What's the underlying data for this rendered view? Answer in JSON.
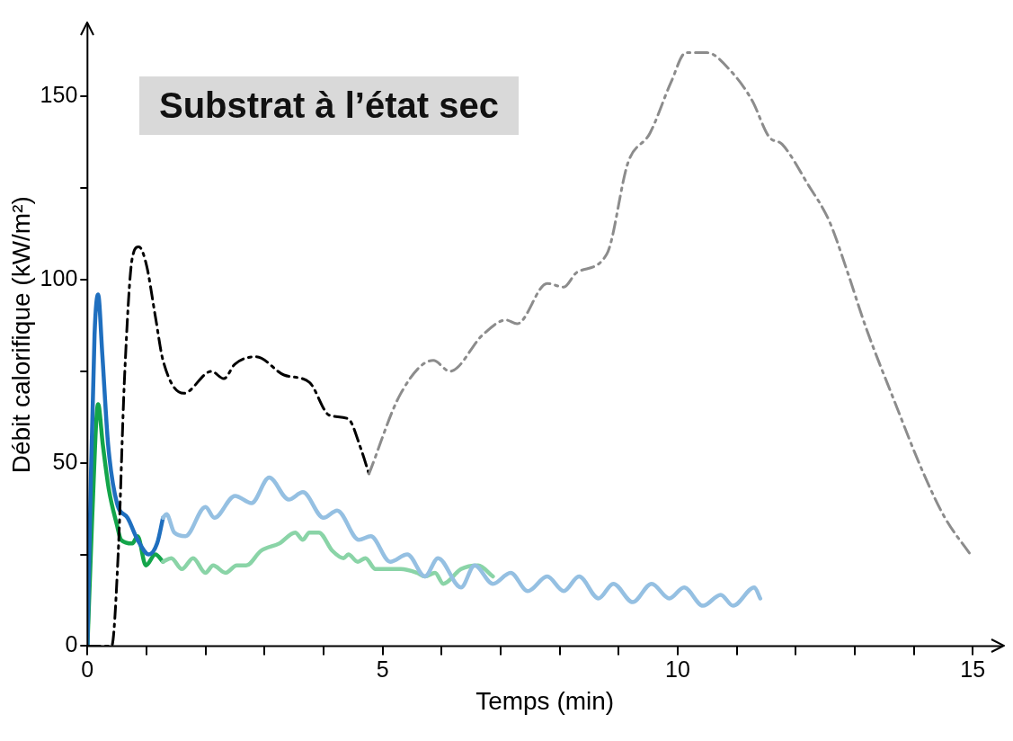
{
  "chart_data": {
    "type": "line",
    "title": "Substrat à l’état sec",
    "xlabel": "Temps (min)",
    "ylabel": "Débit calorifique (kW/m²)",
    "xlim": [
      0,
      15.5
    ],
    "ylim": [
      0,
      170
    ],
    "xticks": [
      0,
      {
        "value": 1,
        "label": null
      },
      {
        "value": 2,
        "label": null
      },
      {
        "value": 3,
        "label": null
      },
      {
        "value": 4,
        "label": null
      },
      5,
      {
        "value": 6,
        "label": null
      },
      {
        "value": 7,
        "label": null
      },
      {
        "value": 8,
        "label": null
      },
      {
        "value": 9,
        "label": null
      },
      10,
      {
        "value": 11,
        "label": null
      },
      {
        "value": 12,
        "label": null
      },
      {
        "value": 13,
        "label": null
      },
      {
        "value": 14,
        "label": null
      },
      15
    ],
    "yticks": [
      0,
      {
        "value": 25,
        "label": null
      },
      50,
      {
        "value": 75,
        "label": null
      },
      100,
      {
        "value": 125,
        "label": null
      },
      150
    ],
    "grid": false,
    "legend": false,
    "marker": "none",
    "series": [
      {
        "color": "#8c8c8c",
        "line_style": "dashed",
        "x": [
          4.77,
          5.31,
          5.86,
          6.14,
          6.7,
          7.09,
          7.28,
          7.79,
          8.07,
          8.29,
          8.8,
          9.16,
          9.53,
          9.89,
          10.14,
          10.5,
          10.9,
          11.26,
          11.55,
          11.77,
          12.21,
          12.57,
          12.86,
          13.19,
          13.67,
          14.17,
          14.53,
          14.96
        ],
        "values": [
          47,
          69,
          78,
          75,
          85,
          89,
          88,
          99,
          98,
          102,
          107,
          132,
          140,
          154,
          162,
          162,
          157,
          149,
          139,
          137,
          126,
          116,
          103,
          87,
          67,
          47,
          35,
          25
        ]
      },
      {
        "color": "#000000",
        "line_style": "dashed",
        "x": [
          0,
          0.41,
          0.52,
          0.63,
          0.76,
          0.87,
          1.0,
          1.15,
          1.28,
          1.63,
          2.1,
          2.31,
          2.5,
          2.86,
          3.33,
          3.76,
          4.1,
          4.42,
          4.63,
          4.77
        ],
        "values": [
          0,
          0,
          25,
          74,
          106,
          109,
          104,
          90,
          78,
          69,
          75,
          73,
          77,
          79,
          74,
          72,
          63,
          62,
          54,
          47
        ]
      },
      {
        "color": "#95c0e2",
        "line_style": "solid",
        "x": [
          1.28,
          1.34,
          1.47,
          1.66,
          2.0,
          2.15,
          2.5,
          2.78,
          3.08,
          3.41,
          3.65,
          4.0,
          4.23,
          4.6,
          4.8,
          5.13,
          5.42,
          5.72,
          5.94,
          6.33,
          6.56,
          6.87,
          7.17,
          7.46,
          7.79,
          8.07,
          8.33,
          8.66,
          8.91,
          9.24,
          9.56,
          9.86,
          10.11,
          10.43,
          10.73,
          10.94,
          11.3,
          11.4
        ],
        "values": [
          35,
          36,
          31,
          30,
          38,
          35,
          41,
          39,
          46,
          40,
          42,
          35,
          37,
          29,
          30,
          23,
          25,
          19,
          24,
          16,
          22,
          17,
          20,
          15,
          19,
          15,
          19,
          13,
          17,
          12,
          17,
          13,
          16,
          11,
          14,
          11,
          16,
          13
        ]
      },
      {
        "color": "#8ad4a7",
        "line_style": "solid",
        "x": [
          1.28,
          1.42,
          1.6,
          1.79,
          2.0,
          2.13,
          2.34,
          2.53,
          2.69,
          2.94,
          3.25,
          3.52,
          3.65,
          3.76,
          3.92,
          4.15,
          4.34,
          4.42,
          4.58,
          4.71,
          4.88,
          5.31,
          5.58,
          5.72,
          5.89,
          6.03,
          6.33,
          6.62,
          6.87
        ],
        "values": [
          23,
          24,
          21,
          24,
          20,
          22,
          20,
          22,
          22,
          26,
          28,
          31,
          29,
          31,
          31,
          26,
          24,
          25,
          23,
          24,
          21,
          21,
          20,
          19,
          20,
          17,
          21,
          22,
          19
        ]
      },
      {
        "color": "#1f6fbf",
        "line_style": "solid",
        "x": [
          0,
          0.05,
          0.12,
          0.18,
          0.25,
          0.35,
          0.5,
          0.68,
          0.85,
          1.04,
          1.18,
          1.28
        ],
        "values": [
          0,
          40,
          85,
          96,
          80,
          55,
          39,
          35,
          29,
          25,
          28,
          35
        ]
      },
      {
        "color": "#13a54a",
        "line_style": "solid",
        "x": [
          0,
          0.08,
          0.18,
          0.26,
          0.36,
          0.5,
          0.57,
          0.76,
          0.85,
          0.99,
          1.15,
          1.28
        ],
        "values": [
          0,
          35,
          66,
          55,
          43,
          33,
          29,
          28,
          30,
          22,
          25,
          23
        ]
      }
    ]
  }
}
